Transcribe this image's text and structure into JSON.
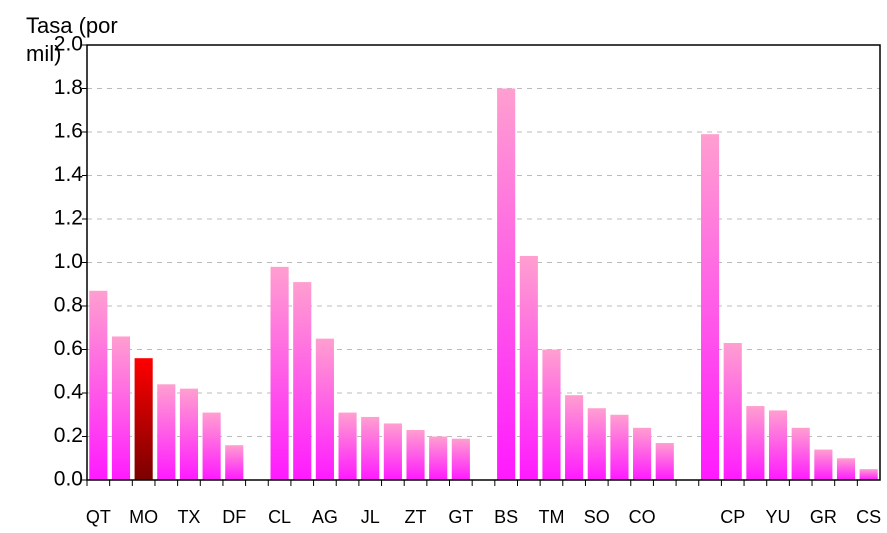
{
  "chart_data": {
    "type": "bar",
    "y_label": "Tasa (por mil)",
    "categories": [
      "QT",
      null,
      "MO",
      null,
      "TX",
      null,
      "DF",
      null,
      "CL",
      null,
      "AG",
      null,
      "JL",
      null,
      "ZT",
      null,
      "GT",
      null,
      "BS",
      null,
      "TM",
      null,
      "SO",
      null,
      "CO",
      null,
      null,
      null,
      "CP",
      null,
      "YU",
      null,
      "GR",
      null,
      "CS"
    ],
    "values": [
      0.87,
      0.66,
      0.56,
      0.44,
      0.42,
      0.31,
      0.16,
      null,
      0.98,
      0.91,
      0.65,
      0.31,
      0.29,
      0.26,
      0.23,
      0.2,
      0.19,
      null,
      1.8,
      1.03,
      0.6,
      0.39,
      0.33,
      0.3,
      0.24,
      0.17,
      null,
      1.59,
      0.63,
      0.34,
      0.32,
      0.24,
      0.14,
      0.1,
      0.05
    ],
    "color": [
      "#ff9fd0",
      "#ff1aff"
    ],
    "highlight": {
      "category": "MO",
      "color": [
        "#ff0000",
        "#7a0000"
      ]
    },
    "ylim": [
      0,
      2
    ],
    "yticks": [
      {
        "value": 0,
        "label": "0.0"
      },
      {
        "value": 0.2,
        "label": "0.2"
      },
      {
        "value": 0.4,
        "label": "0.4"
      },
      {
        "value": 0.6,
        "label": "0.6"
      },
      {
        "value": 0.8,
        "label": "0.8"
      },
      {
        "value": 1,
        "label": "1.0"
      },
      {
        "value": 1.2,
        "label": "1.2"
      },
      {
        "value": 1.4,
        "label": "1.4"
      },
      {
        "value": 1.6,
        "label": "1.6"
      },
      {
        "value": 1.8,
        "label": "1.8"
      },
      {
        "value": 2,
        "label": "2.0"
      }
    ],
    "grid": true
  }
}
